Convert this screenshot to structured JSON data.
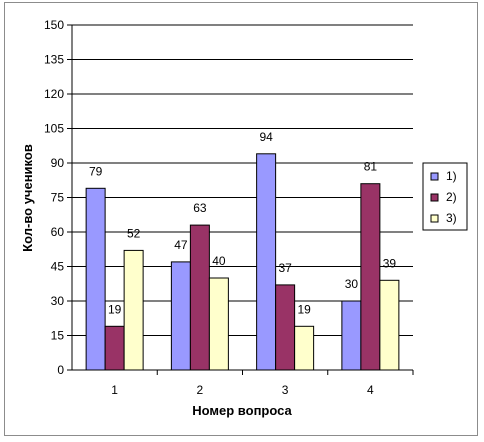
{
  "chart_data": {
    "type": "bar",
    "categories": [
      "1",
      "2",
      "3",
      "4"
    ],
    "series": [
      {
        "name": "1)",
        "values": [
          79,
          47,
          94,
          30
        ],
        "color": "#9999ff"
      },
      {
        "name": "2)",
        "values": [
          19,
          63,
          37,
          81
        ],
        "color": "#993366"
      },
      {
        "name": "3)",
        "values": [
          52,
          40,
          19,
          39
        ],
        "color": "#ffffcc"
      }
    ],
    "xlabel": "Номер вопроса",
    "ylabel": "Кол-во учеников",
    "ylim": [
      0,
      150
    ],
    "yticks": [
      "0",
      "15",
      "30",
      "45",
      "60",
      "75",
      "90",
      "105",
      "120",
      "135",
      "150"
    ],
    "grid": true,
    "legend_position": "right"
  }
}
